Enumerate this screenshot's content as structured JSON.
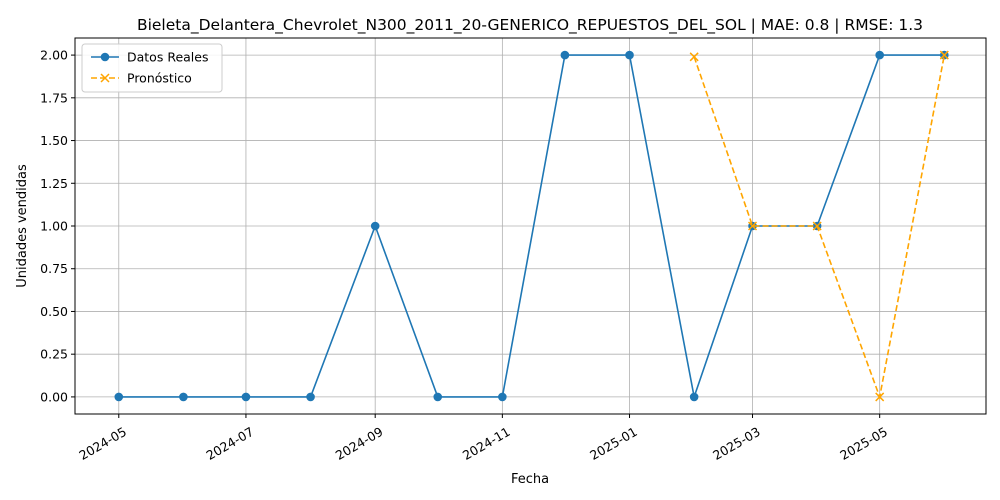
{
  "chart_data": {
    "type": "line",
    "title": "Bieleta_Delantera_Chevrolet_N300_2011_20-GENERICO_REPUESTOS_DEL_SOL | MAE: 0.8 | RMSE: 1.3",
    "xlabel": "Fecha",
    "ylabel": "Unidades vendidas",
    "x_ticks": [
      "2024-05",
      "2024-07",
      "2024-09",
      "2024-11",
      "2025-01",
      "2025-03",
      "2025-05"
    ],
    "y_ticks": [
      "0.00",
      "0.25",
      "0.50",
      "0.75",
      "1.00",
      "1.25",
      "1.50",
      "1.75",
      "2.00"
    ],
    "xlim": [
      "2024-04-10",
      "2025-06-21"
    ],
    "ylim": [
      -0.1,
      2.1
    ],
    "grid": true,
    "legend_position": "upper left",
    "series": [
      {
        "name": "Datos Reales",
        "color": "#1f77b4",
        "style": "solid",
        "marker": "circle",
        "x": [
          "2024-05-01",
          "2024-06-01",
          "2024-07-01",
          "2024-08-01",
          "2024-09-01",
          "2024-10-01",
          "2024-11-01",
          "2024-12-01",
          "2025-01-01",
          "2025-02-01",
          "2025-03-01",
          "2025-04-01",
          "2025-05-01",
          "2025-06-01"
        ],
        "values": [
          0,
          0,
          0,
          0,
          1,
          0,
          0,
          2,
          2,
          0,
          1,
          1,
          2,
          2
        ]
      },
      {
        "name": "Pronóstico",
        "color": "#ffa500",
        "style": "dashed",
        "marker": "x",
        "x": [
          "2025-02-01",
          "2025-03-01",
          "2025-04-01",
          "2025-05-01",
          "2025-06-01"
        ],
        "values": [
          1.99,
          1,
          1,
          0,
          2
        ]
      }
    ]
  }
}
